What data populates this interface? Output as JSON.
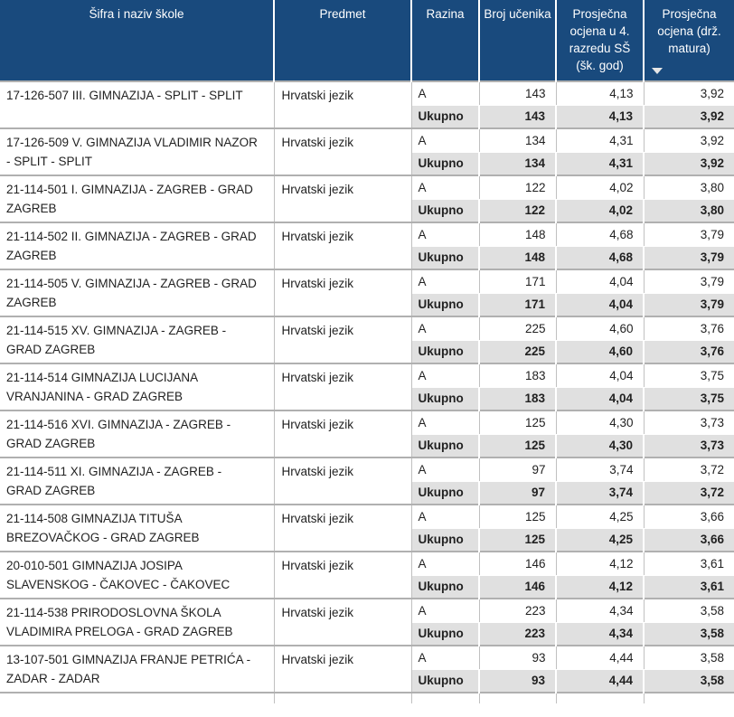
{
  "header": {
    "columns": [
      {
        "label": "Šifra i naziv škole"
      },
      {
        "label": "Predmet"
      },
      {
        "label": "Razina"
      },
      {
        "label": "Broj učenika"
      },
      {
        "label": "Prosječna ocjena u 4. razredu SŠ (šk. god)"
      },
      {
        "label": "Prosječna ocjena (drž. matura)",
        "sort": "descending",
        "sort_icon": "triangle-down-icon"
      }
    ]
  },
  "table": {
    "total_label": "Ukupno",
    "rows": [
      {
        "school": "17-126-507 III. GIMNAZIJA - SPLIT - SPLIT",
        "subject": "Hrvatski jezik",
        "level": "A",
        "students": "143",
        "avg_school": "4,13",
        "avg_matura": "3,92",
        "total_students": "143",
        "total_avg_school": "4,13",
        "total_avg_matura": "3,92"
      },
      {
        "school": "17-126-509 V. GIMNAZIJA VLADIMIR NAZOR - SPLIT - SPLIT",
        "subject": "Hrvatski jezik",
        "level": "A",
        "students": "134",
        "avg_school": "4,31",
        "avg_matura": "3,92",
        "total_students": "134",
        "total_avg_school": "4,31",
        "total_avg_matura": "3,92"
      },
      {
        "school": "21-114-501 I. GIMNAZIJA - ZAGREB - GRAD ZAGREB",
        "subject": "Hrvatski jezik",
        "level": "A",
        "students": "122",
        "avg_school": "4,02",
        "avg_matura": "3,80",
        "total_students": "122",
        "total_avg_school": "4,02",
        "total_avg_matura": "3,80"
      },
      {
        "school": "21-114-502 II. GIMNAZIJA - ZAGREB - GRAD ZAGREB",
        "subject": "Hrvatski jezik",
        "level": "A",
        "students": "148",
        "avg_school": "4,68",
        "avg_matura": "3,79",
        "total_students": "148",
        "total_avg_school": "4,68",
        "total_avg_matura": "3,79"
      },
      {
        "school": "21-114-505 V. GIMNAZIJA - ZAGREB - GRAD ZAGREB",
        "subject": "Hrvatski jezik",
        "level": "A",
        "students": "171",
        "avg_school": "4,04",
        "avg_matura": "3,79",
        "total_students": "171",
        "total_avg_school": "4,04",
        "total_avg_matura": "3,79"
      },
      {
        "school": "21-114-515 XV. GIMNAZIJA - ZAGREB - GRAD ZAGREB",
        "subject": "Hrvatski jezik",
        "level": "A",
        "students": "225",
        "avg_school": "4,60",
        "avg_matura": "3,76",
        "total_students": "225",
        "total_avg_school": "4,60",
        "total_avg_matura": "3,76"
      },
      {
        "school": "21-114-514 GIMNAZIJA LUCIJANA VRANJANINA - GRAD ZAGREB",
        "subject": "Hrvatski jezik",
        "level": "A",
        "students": "183",
        "avg_school": "4,04",
        "avg_matura": "3,75",
        "total_students": "183",
        "total_avg_school": "4,04",
        "total_avg_matura": "3,75"
      },
      {
        "school": "21-114-516 XVI. GIMNAZIJA - ZAGREB - GRAD ZAGREB",
        "subject": "Hrvatski jezik",
        "level": "A",
        "students": "125",
        "avg_school": "4,30",
        "avg_matura": "3,73",
        "total_students": "125",
        "total_avg_school": "4,30",
        "total_avg_matura": "3,73"
      },
      {
        "school": "21-114-511 XI. GIMNAZIJA - ZAGREB - GRAD ZAGREB",
        "subject": "Hrvatski jezik",
        "level": "A",
        "students": "97",
        "avg_school": "3,74",
        "avg_matura": "3,72",
        "total_students": "97",
        "total_avg_school": "3,74",
        "total_avg_matura": "3,72"
      },
      {
        "school": "21-114-508 GIMNAZIJA TITUŠA BREZOVAČKOG - GRAD ZAGREB",
        "subject": "Hrvatski jezik",
        "level": "A",
        "students": "125",
        "avg_school": "4,25",
        "avg_matura": "3,66",
        "total_students": "125",
        "total_avg_school": "4,25",
        "total_avg_matura": "3,66"
      },
      {
        "school": "20-010-501 GIMNAZIJA JOSIPA SLAVENSKOG - ČAKOVEC - ČAKOVEC",
        "subject": "Hrvatski jezik",
        "level": "A",
        "students": "146",
        "avg_school": "4,12",
        "avg_matura": "3,61",
        "total_students": "146",
        "total_avg_school": "4,12",
        "total_avg_matura": "3,61"
      },
      {
        "school": "21-114-538 PRIRODOSLOVNA ŠKOLA VLADIMIRA PRELOGA - GRAD ZAGREB",
        "subject": "Hrvatski jezik",
        "level": "A",
        "students": "223",
        "avg_school": "4,34",
        "avg_matura": "3,58",
        "total_students": "223",
        "total_avg_school": "4,34",
        "total_avg_matura": "3,58"
      },
      {
        "school": "13-107-501 GIMNAZIJA FRANJE PETRIĆA - ZADAR - ZADAR",
        "subject": "Hrvatski jezik",
        "level": "A",
        "students": "93",
        "avg_school": "4,44",
        "avg_matura": "3,58",
        "total_students": "93",
        "total_avg_school": "4,44",
        "total_avg_matura": "3,58"
      }
    ]
  },
  "colors": {
    "header_bg": "#194a7d",
    "header_text": "#ffffff",
    "total_row_bg": "#e0e0e0",
    "row_bg": "#ffffff",
    "group_border": "#b0b0b0",
    "cell_border": "#c0c0c0",
    "text": "#222222"
  }
}
